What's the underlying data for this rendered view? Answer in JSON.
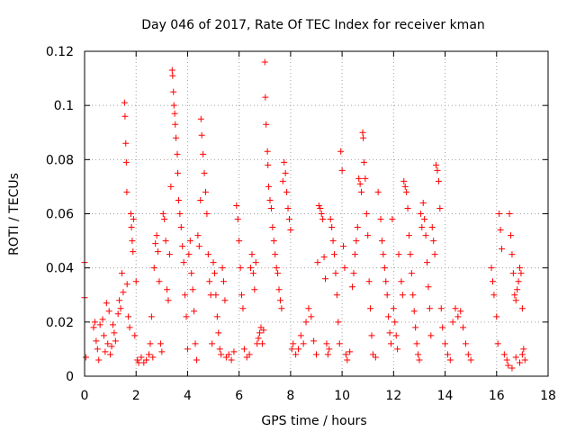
{
  "chart_data": {
    "type": "scatter",
    "title": "Day 046 of 2017, Rate Of TEC Index for receiver kman",
    "xlabel": "GPS time / hours",
    "ylabel": "ROTI / TECUs",
    "xlim": [
      0,
      18
    ],
    "ylim": [
      0,
      0.12
    ],
    "x_ticks": [
      0,
      2,
      4,
      6,
      8,
      10,
      12,
      14,
      16,
      18
    ],
    "y_ticks": [
      0,
      0.02,
      0.04,
      0.06,
      0.08,
      0.1,
      0.12
    ],
    "x_tick_labels": [
      "0",
      "2",
      "4",
      "6",
      "8",
      "10",
      "12",
      "14",
      "16",
      "18"
    ],
    "y_tick_labels": [
      "0",
      "0.02",
      "0.04",
      "0.06",
      "0.08",
      "0.1",
      "0.12"
    ],
    "grid": true,
    "marker": "+",
    "color": "#ff0000",
    "series": [
      {
        "points": [
          [
            0.0,
            0.042
          ],
          [
            0.0,
            0.029
          ],
          [
            0.05,
            0.007
          ],
          [
            0.35,
            0.018
          ],
          [
            0.4,
            0.02
          ],
          [
            0.45,
            0.013
          ],
          [
            0.5,
            0.01
          ],
          [
            0.55,
            0.006
          ],
          [
            0.6,
            0.019
          ],
          [
            0.7,
            0.021
          ],
          [
            0.75,
            0.015
          ],
          [
            0.8,
            0.009
          ],
          [
            0.85,
            0.027
          ],
          [
            0.9,
            0.012
          ],
          [
            0.95,
            0.024
          ],
          [
            1.0,
            0.008
          ],
          [
            1.05,
            0.011
          ],
          [
            1.1,
            0.019
          ],
          [
            1.15,
            0.016
          ],
          [
            1.2,
            0.013
          ],
          [
            1.3,
            0.023
          ],
          [
            1.35,
            0.028
          ],
          [
            1.4,
            0.025
          ],
          [
            1.45,
            0.038
          ],
          [
            1.5,
            0.031
          ],
          [
            1.55,
            0.101
          ],
          [
            1.57,
            0.096
          ],
          [
            1.6,
            0.086
          ],
          [
            1.62,
            0.079
          ],
          [
            1.64,
            0.068
          ],
          [
            1.65,
            0.034
          ],
          [
            1.7,
            0.022
          ],
          [
            1.75,
            0.018
          ],
          [
            1.8,
            0.06
          ],
          [
            1.82,
            0.055
          ],
          [
            1.85,
            0.05
          ],
          [
            1.88,
            0.046
          ],
          [
            1.9,
            0.058
          ],
          [
            1.95,
            0.015
          ],
          [
            2.0,
            0.035
          ],
          [
            2.05,
            0.006
          ],
          [
            2.1,
            0.005
          ],
          [
            2.2,
            0.007
          ],
          [
            2.3,
            0.005
          ],
          [
            2.4,
            0.006
          ],
          [
            2.5,
            0.008
          ],
          [
            2.55,
            0.012
          ],
          [
            2.6,
            0.022
          ],
          [
            2.65,
            0.007
          ],
          [
            2.7,
            0.04
          ],
          [
            2.75,
            0.049
          ],
          [
            2.8,
            0.052
          ],
          [
            2.85,
            0.046
          ],
          [
            2.9,
            0.035
          ],
          [
            2.95,
            0.012
          ],
          [
            3.0,
            0.009
          ],
          [
            3.05,
            0.06
          ],
          [
            3.1,
            0.058
          ],
          [
            3.15,
            0.05
          ],
          [
            3.2,
            0.032
          ],
          [
            3.25,
            0.028
          ],
          [
            3.3,
            0.045
          ],
          [
            3.35,
            0.07
          ],
          [
            3.4,
            0.113
          ],
          [
            3.42,
            0.111
          ],
          [
            3.45,
            0.105
          ],
          [
            3.47,
            0.1
          ],
          [
            3.5,
            0.097
          ],
          [
            3.52,
            0.093
          ],
          [
            3.55,
            0.088
          ],
          [
            3.6,
            0.082
          ],
          [
            3.62,
            0.075
          ],
          [
            3.65,
            0.065
          ],
          [
            3.7,
            0.06
          ],
          [
            3.75,
            0.055
          ],
          [
            3.8,
            0.048
          ],
          [
            3.85,
            0.042
          ],
          [
            3.9,
            0.03
          ],
          [
            3.95,
            0.022
          ],
          [
            4.0,
            0.01
          ],
          [
            4.05,
            0.045
          ],
          [
            4.1,
            0.05
          ],
          [
            4.15,
            0.038
          ],
          [
            4.2,
            0.032
          ],
          [
            4.25,
            0.024
          ],
          [
            4.3,
            0.012
          ],
          [
            4.35,
            0.006
          ],
          [
            4.4,
            0.052
          ],
          [
            4.45,
            0.048
          ],
          [
            4.5,
            0.065
          ],
          [
            4.52,
            0.095
          ],
          [
            4.55,
            0.089
          ],
          [
            4.6,
            0.082
          ],
          [
            4.65,
            0.075
          ],
          [
            4.7,
            0.068
          ],
          [
            4.75,
            0.06
          ],
          [
            4.8,
            0.045
          ],
          [
            4.85,
            0.035
          ],
          [
            4.9,
            0.03
          ],
          [
            4.95,
            0.012
          ],
          [
            5.0,
            0.042
          ],
          [
            5.05,
            0.038
          ],
          [
            5.1,
            0.03
          ],
          [
            5.15,
            0.022
          ],
          [
            5.2,
            0.016
          ],
          [
            5.25,
            0.01
          ],
          [
            5.3,
            0.008
          ],
          [
            5.35,
            0.04
          ],
          [
            5.4,
            0.035
          ],
          [
            5.45,
            0.028
          ],
          [
            5.5,
            0.007
          ],
          [
            5.6,
            0.008
          ],
          [
            5.7,
            0.006
          ],
          [
            5.8,
            0.009
          ],
          [
            5.9,
            0.063
          ],
          [
            5.95,
            0.058
          ],
          [
            6.0,
            0.05
          ],
          [
            6.05,
            0.04
          ],
          [
            6.1,
            0.03
          ],
          [
            6.15,
            0.025
          ],
          [
            6.2,
            0.01
          ],
          [
            6.3,
            0.007
          ],
          [
            6.4,
            0.008
          ],
          [
            6.45,
            0.04
          ],
          [
            6.5,
            0.045
          ],
          [
            6.55,
            0.038
          ],
          [
            6.6,
            0.032
          ],
          [
            6.65,
            0.042
          ],
          [
            6.7,
            0.012
          ],
          [
            6.75,
            0.014
          ],
          [
            6.8,
            0.016
          ],
          [
            6.85,
            0.018
          ],
          [
            6.9,
            0.012
          ],
          [
            6.95,
            0.017
          ],
          [
            7.0,
            0.116
          ],
          [
            7.02,
            0.103
          ],
          [
            7.05,
            0.093
          ],
          [
            7.1,
            0.083
          ],
          [
            7.12,
            0.078
          ],
          [
            7.15,
            0.07
          ],
          [
            7.2,
            0.065
          ],
          [
            7.25,
            0.062
          ],
          [
            7.3,
            0.055
          ],
          [
            7.35,
            0.05
          ],
          [
            7.4,
            0.045
          ],
          [
            7.45,
            0.04
          ],
          [
            7.5,
            0.038
          ],
          [
            7.55,
            0.032
          ],
          [
            7.6,
            0.028
          ],
          [
            7.65,
            0.025
          ],
          [
            7.7,
            0.072
          ],
          [
            7.75,
            0.079
          ],
          [
            7.8,
            0.075
          ],
          [
            7.85,
            0.068
          ],
          [
            7.9,
            0.062
          ],
          [
            7.95,
            0.058
          ],
          [
            8.0,
            0.054
          ],
          [
            8.05,
            0.01
          ],
          [
            8.1,
            0.012
          ],
          [
            8.2,
            0.008
          ],
          [
            8.3,
            0.01
          ],
          [
            8.4,
            0.015
          ],
          [
            8.5,
            0.012
          ],
          [
            8.6,
            0.02
          ],
          [
            8.7,
            0.025
          ],
          [
            8.8,
            0.022
          ],
          [
            8.9,
            0.013
          ],
          [
            9.0,
            0.008
          ],
          [
            9.05,
            0.042
          ],
          [
            9.1,
            0.063
          ],
          [
            9.15,
            0.062
          ],
          [
            9.2,
            0.06
          ],
          [
            9.25,
            0.058
          ],
          [
            9.3,
            0.044
          ],
          [
            9.35,
            0.036
          ],
          [
            9.4,
            0.012
          ],
          [
            9.45,
            0.008
          ],
          [
            9.5,
            0.01
          ],
          [
            9.55,
            0.058
          ],
          [
            9.6,
            0.055
          ],
          [
            9.65,
            0.05
          ],
          [
            9.7,
            0.045
          ],
          [
            9.75,
            0.038
          ],
          [
            9.8,
            0.03
          ],
          [
            9.85,
            0.02
          ],
          [
            9.9,
            0.012
          ],
          [
            9.95,
            0.083
          ],
          [
            10.0,
            0.076
          ],
          [
            10.05,
            0.048
          ],
          [
            10.1,
            0.04
          ],
          [
            10.15,
            0.008
          ],
          [
            10.2,
            0.006
          ],
          [
            10.3,
            0.009
          ],
          [
            10.4,
            0.033
          ],
          [
            10.45,
            0.038
          ],
          [
            10.5,
            0.045
          ],
          [
            10.55,
            0.05
          ],
          [
            10.6,
            0.055
          ],
          [
            10.65,
            0.073
          ],
          [
            10.7,
            0.071
          ],
          [
            10.75,
            0.068
          ],
          [
            10.8,
            0.09
          ],
          [
            10.82,
            0.088
          ],
          [
            10.85,
            0.079
          ],
          [
            10.9,
            0.073
          ],
          [
            10.95,
            0.06
          ],
          [
            11.0,
            0.052
          ],
          [
            11.05,
            0.035
          ],
          [
            11.1,
            0.025
          ],
          [
            11.15,
            0.015
          ],
          [
            11.2,
            0.008
          ],
          [
            11.3,
            0.007
          ],
          [
            11.4,
            0.068
          ],
          [
            11.5,
            0.058
          ],
          [
            11.55,
            0.05
          ],
          [
            11.6,
            0.045
          ],
          [
            11.65,
            0.04
          ],
          [
            11.7,
            0.035
          ],
          [
            11.75,
            0.03
          ],
          [
            11.8,
            0.022
          ],
          [
            11.85,
            0.016
          ],
          [
            11.9,
            0.012
          ],
          [
            11.95,
            0.058
          ],
          [
            12.0,
            0.025
          ],
          [
            12.05,
            0.02
          ],
          [
            12.1,
            0.015
          ],
          [
            12.15,
            0.01
          ],
          [
            12.2,
            0.045
          ],
          [
            12.3,
            0.035
          ],
          [
            12.35,
            0.03
          ],
          [
            12.4,
            0.072
          ],
          [
            12.45,
            0.07
          ],
          [
            12.5,
            0.068
          ],
          [
            12.55,
            0.062
          ],
          [
            12.6,
            0.052
          ],
          [
            12.65,
            0.045
          ],
          [
            12.7,
            0.038
          ],
          [
            12.75,
            0.03
          ],
          [
            12.8,
            0.024
          ],
          [
            12.85,
            0.018
          ],
          [
            12.9,
            0.012
          ],
          [
            12.95,
            0.008
          ],
          [
            13.0,
            0.006
          ],
          [
            13.05,
            0.06
          ],
          [
            13.1,
            0.055
          ],
          [
            13.15,
            0.064
          ],
          [
            13.2,
            0.058
          ],
          [
            13.25,
            0.052
          ],
          [
            13.3,
            0.042
          ],
          [
            13.35,
            0.033
          ],
          [
            13.4,
            0.025
          ],
          [
            13.45,
            0.015
          ],
          [
            13.5,
            0.055
          ],
          [
            13.55,
            0.05
          ],
          [
            13.6,
            0.045
          ],
          [
            13.65,
            0.078
          ],
          [
            13.7,
            0.076
          ],
          [
            13.75,
            0.072
          ],
          [
            13.8,
            0.062
          ],
          [
            13.85,
            0.025
          ],
          [
            13.9,
            0.018
          ],
          [
            14.0,
            0.012
          ],
          [
            14.1,
            0.008
          ],
          [
            14.2,
            0.006
          ],
          [
            14.3,
            0.02
          ],
          [
            14.4,
            0.025
          ],
          [
            14.5,
            0.022
          ],
          [
            14.6,
            0.024
          ],
          [
            14.7,
            0.018
          ],
          [
            14.8,
            0.012
          ],
          [
            14.9,
            0.008
          ],
          [
            15.0,
            0.006
          ],
          [
            15.8,
            0.04
          ],
          [
            15.85,
            0.035
          ],
          [
            15.9,
            0.03
          ],
          [
            16.0,
            0.022
          ],
          [
            16.05,
            0.012
          ],
          [
            16.1,
            0.06
          ],
          [
            16.15,
            0.054
          ],
          [
            16.2,
            0.047
          ],
          [
            16.3,
            0.008
          ],
          [
            16.4,
            0.006
          ],
          [
            16.5,
            0.06
          ],
          [
            16.55,
            0.052
          ],
          [
            16.6,
            0.045
          ],
          [
            16.65,
            0.038
          ],
          [
            16.7,
            0.03
          ],
          [
            16.75,
            0.028
          ],
          [
            16.8,
            0.032
          ],
          [
            16.85,
            0.035
          ],
          [
            16.9,
            0.04
          ],
          [
            16.95,
            0.038
          ],
          [
            17.0,
            0.025
          ],
          [
            17.05,
            0.01
          ],
          [
            17.1,
            0.006
          ],
          [
            16.45,
            0.004
          ],
          [
            16.6,
            0.003
          ],
          [
            16.75,
            0.007
          ],
          [
            16.9,
            0.005
          ],
          [
            17.0,
            0.008
          ]
        ]
      }
    ]
  }
}
